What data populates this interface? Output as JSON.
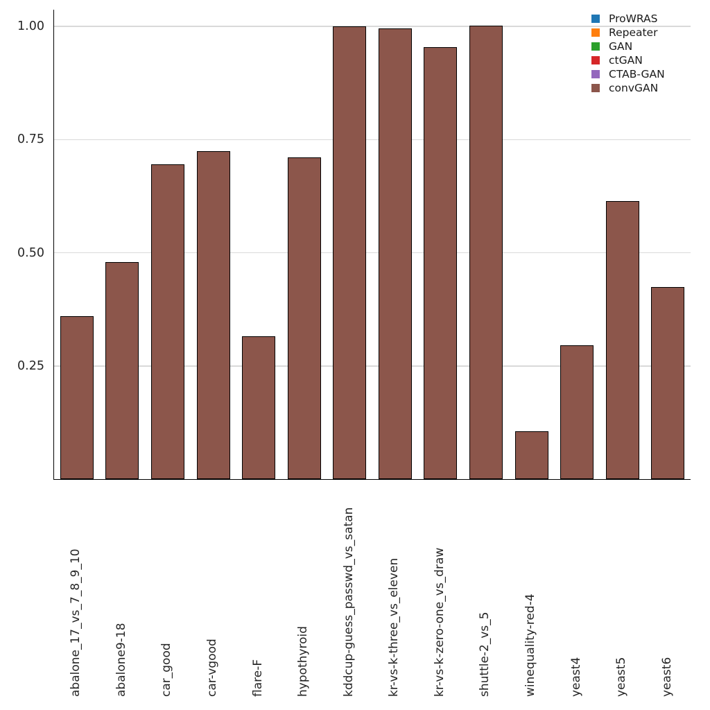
{
  "chart_data": {
    "type": "bar",
    "title": "",
    "xlabel": "",
    "ylabel": "",
    "categories": [
      "abalone_17_vs_7_8_9_10",
      "abalone9-18",
      "car_good",
      "car-vgood",
      "flare-F",
      "hypothyroid",
      "kddcup-guess_passwd_vs_satan",
      "kr-vs-k-three_vs_eleven",
      "kr-vs-k-zero-one_vs_draw",
      "shuttle-2_vs_5",
      "winequality-red-4",
      "yeast4",
      "yeast5",
      "yeast6"
    ],
    "series": [
      {
        "name": "convGAN",
        "color": "#8c564b",
        "values": [
          0.36,
          0.48,
          0.695,
          0.725,
          0.315,
          0.71,
          1.0,
          0.995,
          0.955,
          1.002,
          0.105,
          0.295,
          0.615,
          0.425
        ]
      }
    ],
    "legend": [
      {
        "label": "ProWRAS",
        "color": "#1f77b4"
      },
      {
        "label": "Repeater",
        "color": "#ff7f0e"
      },
      {
        "label": "GAN",
        "color": "#2ca02c"
      },
      {
        "label": "ctGAN",
        "color": "#d62728"
      },
      {
        "label": "CTAB-GAN",
        "color": "#9467bd"
      },
      {
        "label": "convGAN",
        "color": "#8c564b"
      }
    ],
    "legend_position": "top-right",
    "ylim": [
      0,
      1.037
    ],
    "yticks": [
      0.25,
      0.5,
      0.75,
      1.0
    ],
    "ytick_labels": [
      "0.25",
      "0.50",
      "0.75",
      "1.00"
    ],
    "grid": true,
    "grid_color": "#d9d9d9",
    "axis_color": "#000000",
    "bar_edge_color": "#000000",
    "background_color": "#ffffff"
  }
}
